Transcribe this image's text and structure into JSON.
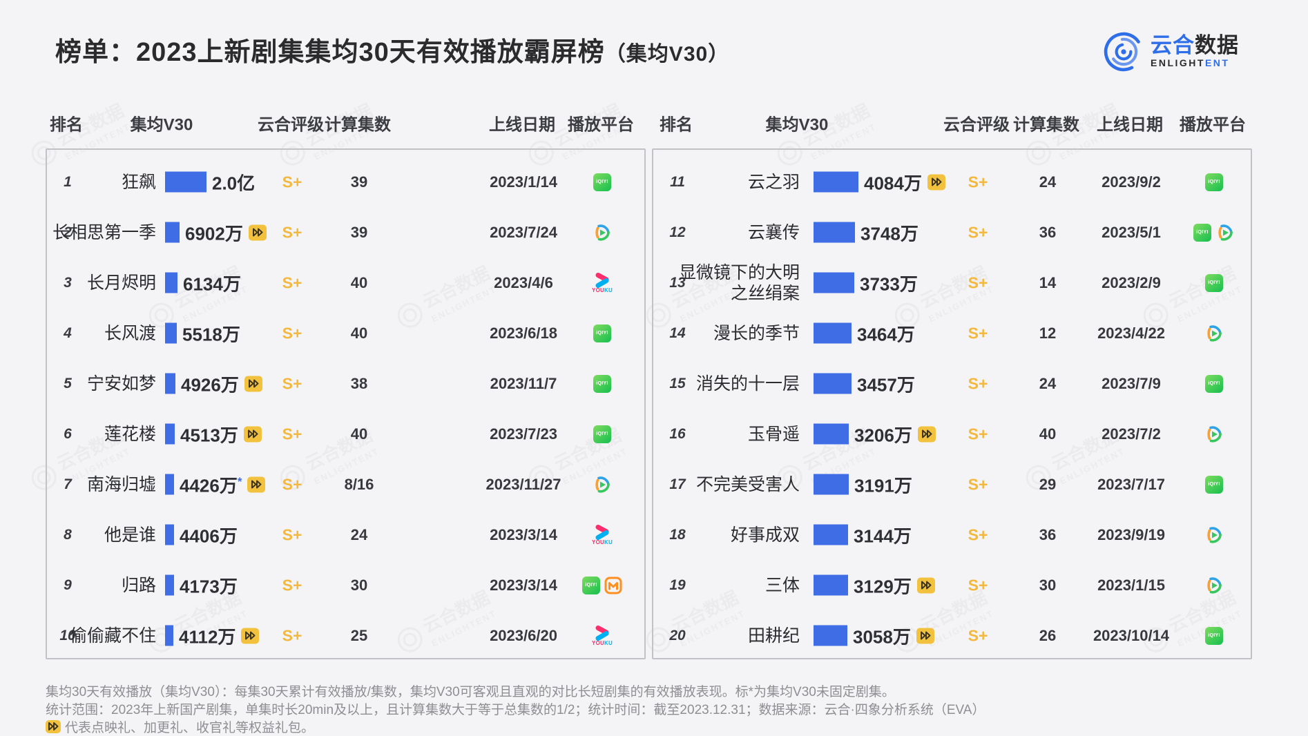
{
  "header": {
    "title_main": "榜单：2023上新剧集集均30天有效播放霸屏榜",
    "title_paren": "（集均V30）"
  },
  "logo": {
    "cn_blue": "云合",
    "cn_dark": "数据",
    "en_dark": "ENLIGHT",
    "en_blue": "ENT"
  },
  "watermark": {
    "line1": "云合数据",
    "line2": "ENLIGHTENT"
  },
  "columns": [
    "排名",
    "集均V30",
    "云合评级",
    "计算集数",
    "上线日期",
    "播放平台"
  ],
  "platform_names": {
    "iqiyi": "iQIYI",
    "tencent": "Tencent Video",
    "youku": "YOUKU",
    "mgtv": "Mango TV"
  },
  "colors": {
    "bar": "#3e6de5",
    "rating": "#f4b83e",
    "accent_blue": "#2e6ee8",
    "gift_bg": "#f2c23e"
  },
  "panels": [
    {
      "side": "left",
      "bar_max_value": 20000,
      "bar_max_width": 60,
      "rows": [
        {
          "rank": "1",
          "title": "狂飙",
          "value_display": "2.0亿",
          "value_wan": 20000,
          "star": false,
          "gift": false,
          "rating": "S+",
          "episodes": "39",
          "date": "2023/1/14",
          "platforms": [
            "iqiyi"
          ]
        },
        {
          "rank": "2",
          "title": "长相思第一季",
          "value_display": "6902万",
          "value_wan": 6902,
          "star": false,
          "gift": true,
          "rating": "S+",
          "episodes": "39",
          "date": "2023/7/24",
          "platforms": [
            "tencent"
          ]
        },
        {
          "rank": "3",
          "title": "长月烬明",
          "value_display": "6134万",
          "value_wan": 6134,
          "star": false,
          "gift": false,
          "rating": "S+",
          "episodes": "40",
          "date": "2023/4/6",
          "platforms": [
            "youku"
          ]
        },
        {
          "rank": "4",
          "title": "长风渡",
          "value_display": "5518万",
          "value_wan": 5518,
          "star": false,
          "gift": false,
          "rating": "S+",
          "episodes": "40",
          "date": "2023/6/18",
          "platforms": [
            "iqiyi"
          ]
        },
        {
          "rank": "5",
          "title": "宁安如梦",
          "value_display": "4926万",
          "value_wan": 4926,
          "star": false,
          "gift": true,
          "rating": "S+",
          "episodes": "38",
          "date": "2023/11/7",
          "platforms": [
            "iqiyi"
          ]
        },
        {
          "rank": "6",
          "title": "莲花楼",
          "value_display": "4513万",
          "value_wan": 4513,
          "star": false,
          "gift": true,
          "rating": "S+",
          "episodes": "40",
          "date": "2023/7/23",
          "platforms": [
            "iqiyi"
          ]
        },
        {
          "rank": "7",
          "title": "南海归墟",
          "value_display": "4426万",
          "value_wan": 4426,
          "star": true,
          "gift": true,
          "rating": "S+",
          "episodes": "8/16",
          "date": "2023/11/27",
          "platforms": [
            "tencent"
          ]
        },
        {
          "rank": "8",
          "title": "他是谁",
          "value_display": "4406万",
          "value_wan": 4406,
          "star": false,
          "gift": false,
          "rating": "S+",
          "episodes": "24",
          "date": "2023/3/14",
          "platforms": [
            "youku"
          ]
        },
        {
          "rank": "9",
          "title": "归路",
          "value_display": "4173万",
          "value_wan": 4173,
          "star": false,
          "gift": false,
          "rating": "S+",
          "episodes": "30",
          "date": "2023/3/14",
          "platforms": [
            "iqiyi",
            "mgtv"
          ]
        },
        {
          "rank": "10",
          "title": "偷偷藏不住",
          "value_display": "4112万",
          "value_wan": 4112,
          "star": false,
          "gift": true,
          "rating": "S+",
          "episodes": "25",
          "date": "2023/6/20",
          "platforms": [
            "youku"
          ]
        }
      ]
    },
    {
      "side": "right",
      "bar_max_value": 4084,
      "bar_max_width": 65,
      "rows": [
        {
          "rank": "11",
          "title": "云之羽",
          "value_display": "4084万",
          "value_wan": 4084,
          "star": false,
          "gift": true,
          "rating": "S+",
          "episodes": "24",
          "date": "2023/9/2",
          "platforms": [
            "iqiyi"
          ]
        },
        {
          "rank": "12",
          "title": "云襄传",
          "value_display": "3748万",
          "value_wan": 3748,
          "star": false,
          "gift": false,
          "rating": "S+",
          "episodes": "36",
          "date": "2023/5/1",
          "platforms": [
            "iqiyi",
            "tencent"
          ]
        },
        {
          "rank": "13",
          "title": "显微镜下的大明\n之丝绢案",
          "value_display": "3733万",
          "value_wan": 3733,
          "star": false,
          "gift": false,
          "rating": "S+",
          "episodes": "14",
          "date": "2023/2/9",
          "platforms": [
            "iqiyi"
          ]
        },
        {
          "rank": "14",
          "title": "漫长的季节",
          "value_display": "3464万",
          "value_wan": 3464,
          "star": false,
          "gift": false,
          "rating": "S+",
          "episodes": "12",
          "date": "2023/4/22",
          "platforms": [
            "tencent"
          ]
        },
        {
          "rank": "15",
          "title": "消失的十一层",
          "value_display": "3457万",
          "value_wan": 3457,
          "star": false,
          "gift": false,
          "rating": "S+",
          "episodes": "24",
          "date": "2023/7/9",
          "platforms": [
            "iqiyi"
          ]
        },
        {
          "rank": "16",
          "title": "玉骨遥",
          "value_display": "3206万",
          "value_wan": 3206,
          "star": false,
          "gift": true,
          "rating": "S+",
          "episodes": "40",
          "date": "2023/7/2",
          "platforms": [
            "tencent"
          ]
        },
        {
          "rank": "17",
          "title": "不完美受害人",
          "value_display": "3191万",
          "value_wan": 3191,
          "star": false,
          "gift": false,
          "rating": "S+",
          "episodes": "29",
          "date": "2023/7/17",
          "platforms": [
            "iqiyi"
          ]
        },
        {
          "rank": "18",
          "title": "好事成双",
          "value_display": "3144万",
          "value_wan": 3144,
          "star": false,
          "gift": false,
          "rating": "S+",
          "episodes": "36",
          "date": "2023/9/19",
          "platforms": [
            "tencent"
          ]
        },
        {
          "rank": "19",
          "title": "三体",
          "value_display": "3129万",
          "value_wan": 3129,
          "star": false,
          "gift": true,
          "rating": "S+",
          "episodes": "30",
          "date": "2023/1/15",
          "platforms": [
            "tencent"
          ]
        },
        {
          "rank": "20",
          "title": "田耕纪",
          "value_display": "3058万",
          "value_wan": 3058,
          "star": false,
          "gift": true,
          "rating": "S+",
          "episodes": "26",
          "date": "2023/10/14",
          "platforms": [
            "iqiyi"
          ]
        }
      ]
    }
  ],
  "footnotes": [
    "集均30天有效播放（集均V30）：每集30天累计有效播放/集数，集均V30可客观且直观的对比长短剧集的有效播放表现。标*为集均V30未固定剧集。",
    "统计范围：2023年上新国产剧集，单集时长20min及以上，且计算集数大于等于总集数的1/2；统计时间：截至2023.12.31；数据来源：云合·四象分析系统（EVA）",
    "代表点映礼、加更礼、收官礼等权益礼包。"
  ],
  "chart_data": {
    "type": "bar",
    "orientation": "horizontal",
    "title": "榜单：2023上新剧集集均30天有效播放霸屏榜（集均V30）",
    "unit": "万",
    "categories": [
      "狂飙",
      "长相思第一季",
      "长月烬明",
      "长风渡",
      "宁安如梦",
      "莲花楼",
      "南海归墟",
      "他是谁",
      "归路",
      "偷偷藏不住",
      "云之羽",
      "云襄传",
      "显微镜下的大明之丝绢案",
      "漫长的季节",
      "消失的十一层",
      "玉骨遥",
      "不完美受害人",
      "好事成双",
      "三体",
      "田耕纪"
    ],
    "values": [
      20000,
      6902,
      6134,
      5518,
      4926,
      4513,
      4426,
      4406,
      4173,
      4112,
      4084,
      3748,
      3733,
      3464,
      3457,
      3206,
      3191,
      3144,
      3129,
      3058
    ],
    "value_labels": [
      "2.0亿",
      "6902万",
      "6134万",
      "5518万",
      "4926万",
      "4513万",
      "4426万",
      "4406万",
      "4173万",
      "4112万",
      "4084万",
      "3748万",
      "3733万",
      "3464万",
      "3457万",
      "3206万",
      "3191万",
      "3144万",
      "3129万",
      "3058万"
    ],
    "legend": false,
    "grid": false
  }
}
